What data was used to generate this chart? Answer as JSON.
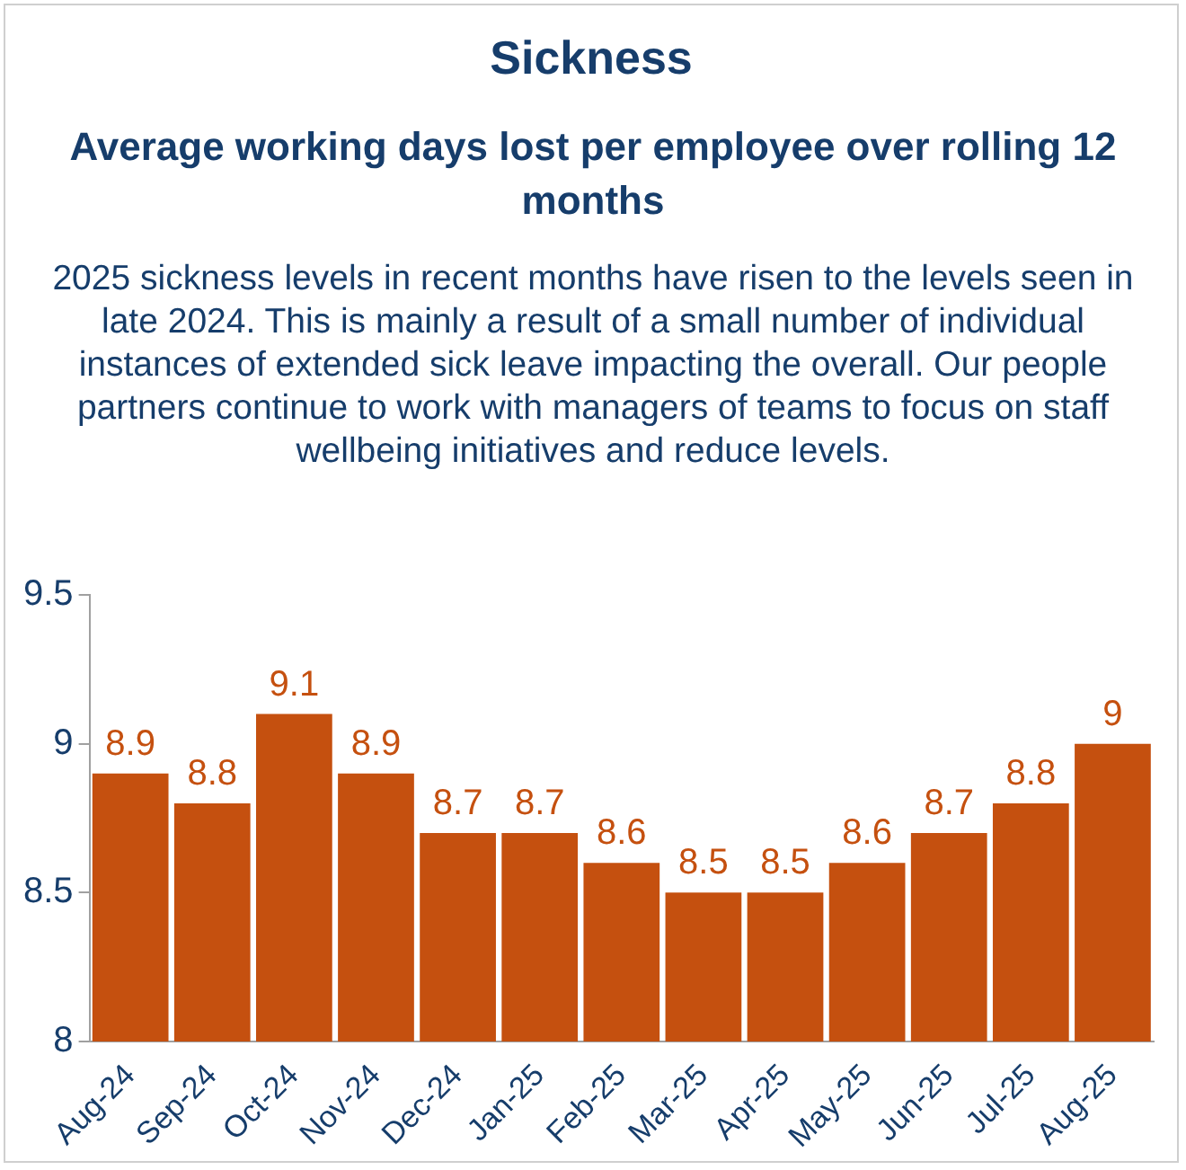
{
  "chart_data": {
    "type": "bar",
    "title": "Sickness",
    "subtitle": "Average working days lost per employee over rolling 12 months",
    "annotations": [
      "2025 sickness levels in recent months have risen to the levels seen in late 2024. This is mainly a result of a small number of individual instances of extended sick leave impacting the overall. Our people partners continue to work with managers of teams to focus on staff wellbeing initiatives and reduce levels."
    ],
    "categories": [
      "Aug-24",
      "Sep-24",
      "Oct-24",
      "Nov-24",
      "Dec-24",
      "Jan-25",
      "Feb-25",
      "Mar-25",
      "Apr-25",
      "May-25",
      "Jun-25",
      "Jul-25",
      "Aug-25"
    ],
    "values": [
      8.9,
      8.8,
      9.1,
      8.9,
      8.7,
      8.7,
      8.6,
      8.5,
      8.5,
      8.6,
      8.7,
      8.8,
      9
    ],
    "color": "#c5500f",
    "ylim": [
      8,
      9.5
    ],
    "yticks": [
      8,
      {
        "value": 8.5,
        "label": "8.5"
      },
      9,
      {
        "value": 9.5,
        "label": "9.5"
      }
    ],
    "grid": false,
    "legend": false,
    "data_labels": true
  }
}
